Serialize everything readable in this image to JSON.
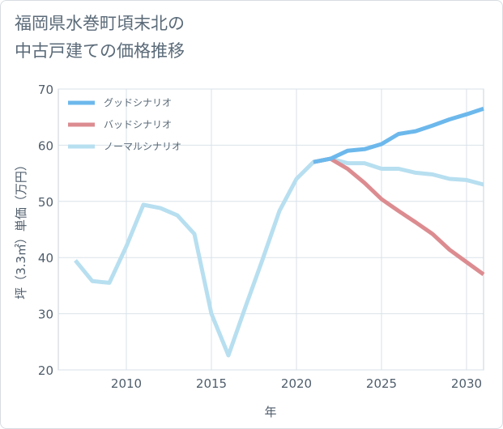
{
  "title_lines": [
    "福岡県水巻町頃末北の",
    "中古戸建ての価格推移"
  ],
  "chart_data": {
    "type": "line",
    "title": "福岡県水巻町頃末北の中古戸建ての価格推移",
    "xlabel": "年",
    "ylabel": "坪（3.3㎡）単価（万円）",
    "xlim": [
      2006,
      2031
    ],
    "ylim": [
      20,
      70
    ],
    "xticks": [
      2010,
      2015,
      2020,
      2025,
      2030
    ],
    "yticks": [
      20,
      30,
      40,
      50,
      60,
      70
    ],
    "grid": true,
    "legend_position": "top-left",
    "series": [
      {
        "name": "グッドシナリオ",
        "color": "#6cb8ec",
        "x": [
          2021,
          2022,
          2023,
          2024,
          2025,
          2026,
          2027,
          2028,
          2029,
          2030,
          2031
        ],
        "y": [
          57.0,
          57.6,
          59.0,
          59.3,
          60.2,
          62.0,
          62.5,
          63.5,
          64.6,
          65.5,
          66.5
        ]
      },
      {
        "name": "バッドシナリオ",
        "color": "#dc8c90",
        "x": [
          2021,
          2022,
          2023,
          2024,
          2025,
          2026,
          2027,
          2028,
          2029,
          2030,
          2031
        ],
        "y": [
          57.0,
          57.6,
          55.8,
          53.3,
          50.4,
          48.3,
          46.3,
          44.2,
          41.4,
          39.2,
          37.0
        ]
      },
      {
        "name": "ノーマルシナリオ",
        "color": "#b7dff0",
        "x": [
          2007,
          2008,
          2009,
          2010,
          2011,
          2012,
          2013,
          2014,
          2015,
          2016,
          2017,
          2018,
          2019,
          2020,
          2021,
          2022,
          2023,
          2024,
          2025,
          2026,
          2027,
          2028,
          2029,
          2030,
          2031
        ],
        "y": [
          39.5,
          35.8,
          35.5,
          42.0,
          49.4,
          48.8,
          47.5,
          44.2,
          30.0,
          22.6,
          31.2,
          39.6,
          48.3,
          54.0,
          57.0,
          57.6,
          56.8,
          56.8,
          55.8,
          55.8,
          55.1,
          54.8,
          54.0,
          53.8,
          53.0
        ]
      }
    ]
  }
}
